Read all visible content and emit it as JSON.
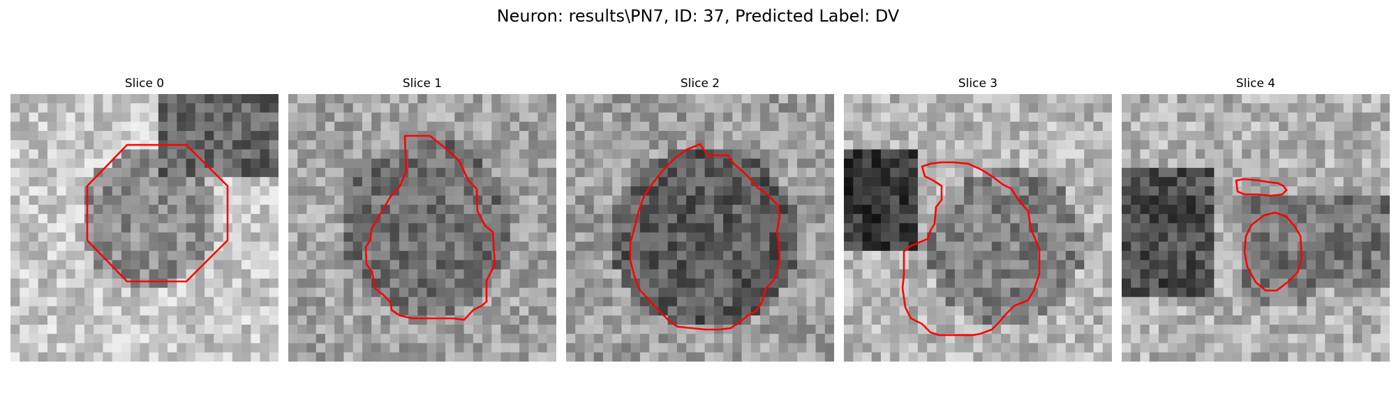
{
  "figure": {
    "title": "Neuron: results\\PN7, ID: 37, Predicted Label: DV"
  },
  "colors": {
    "contour": "#ff0000",
    "background": "#ffffff"
  },
  "panels": [
    {
      "title": "Slice 0"
    },
    {
      "title": "Slice 1"
    },
    {
      "title": "Slice 2"
    },
    {
      "title": "Slice 3"
    },
    {
      "title": "Slice 4"
    }
  ]
}
